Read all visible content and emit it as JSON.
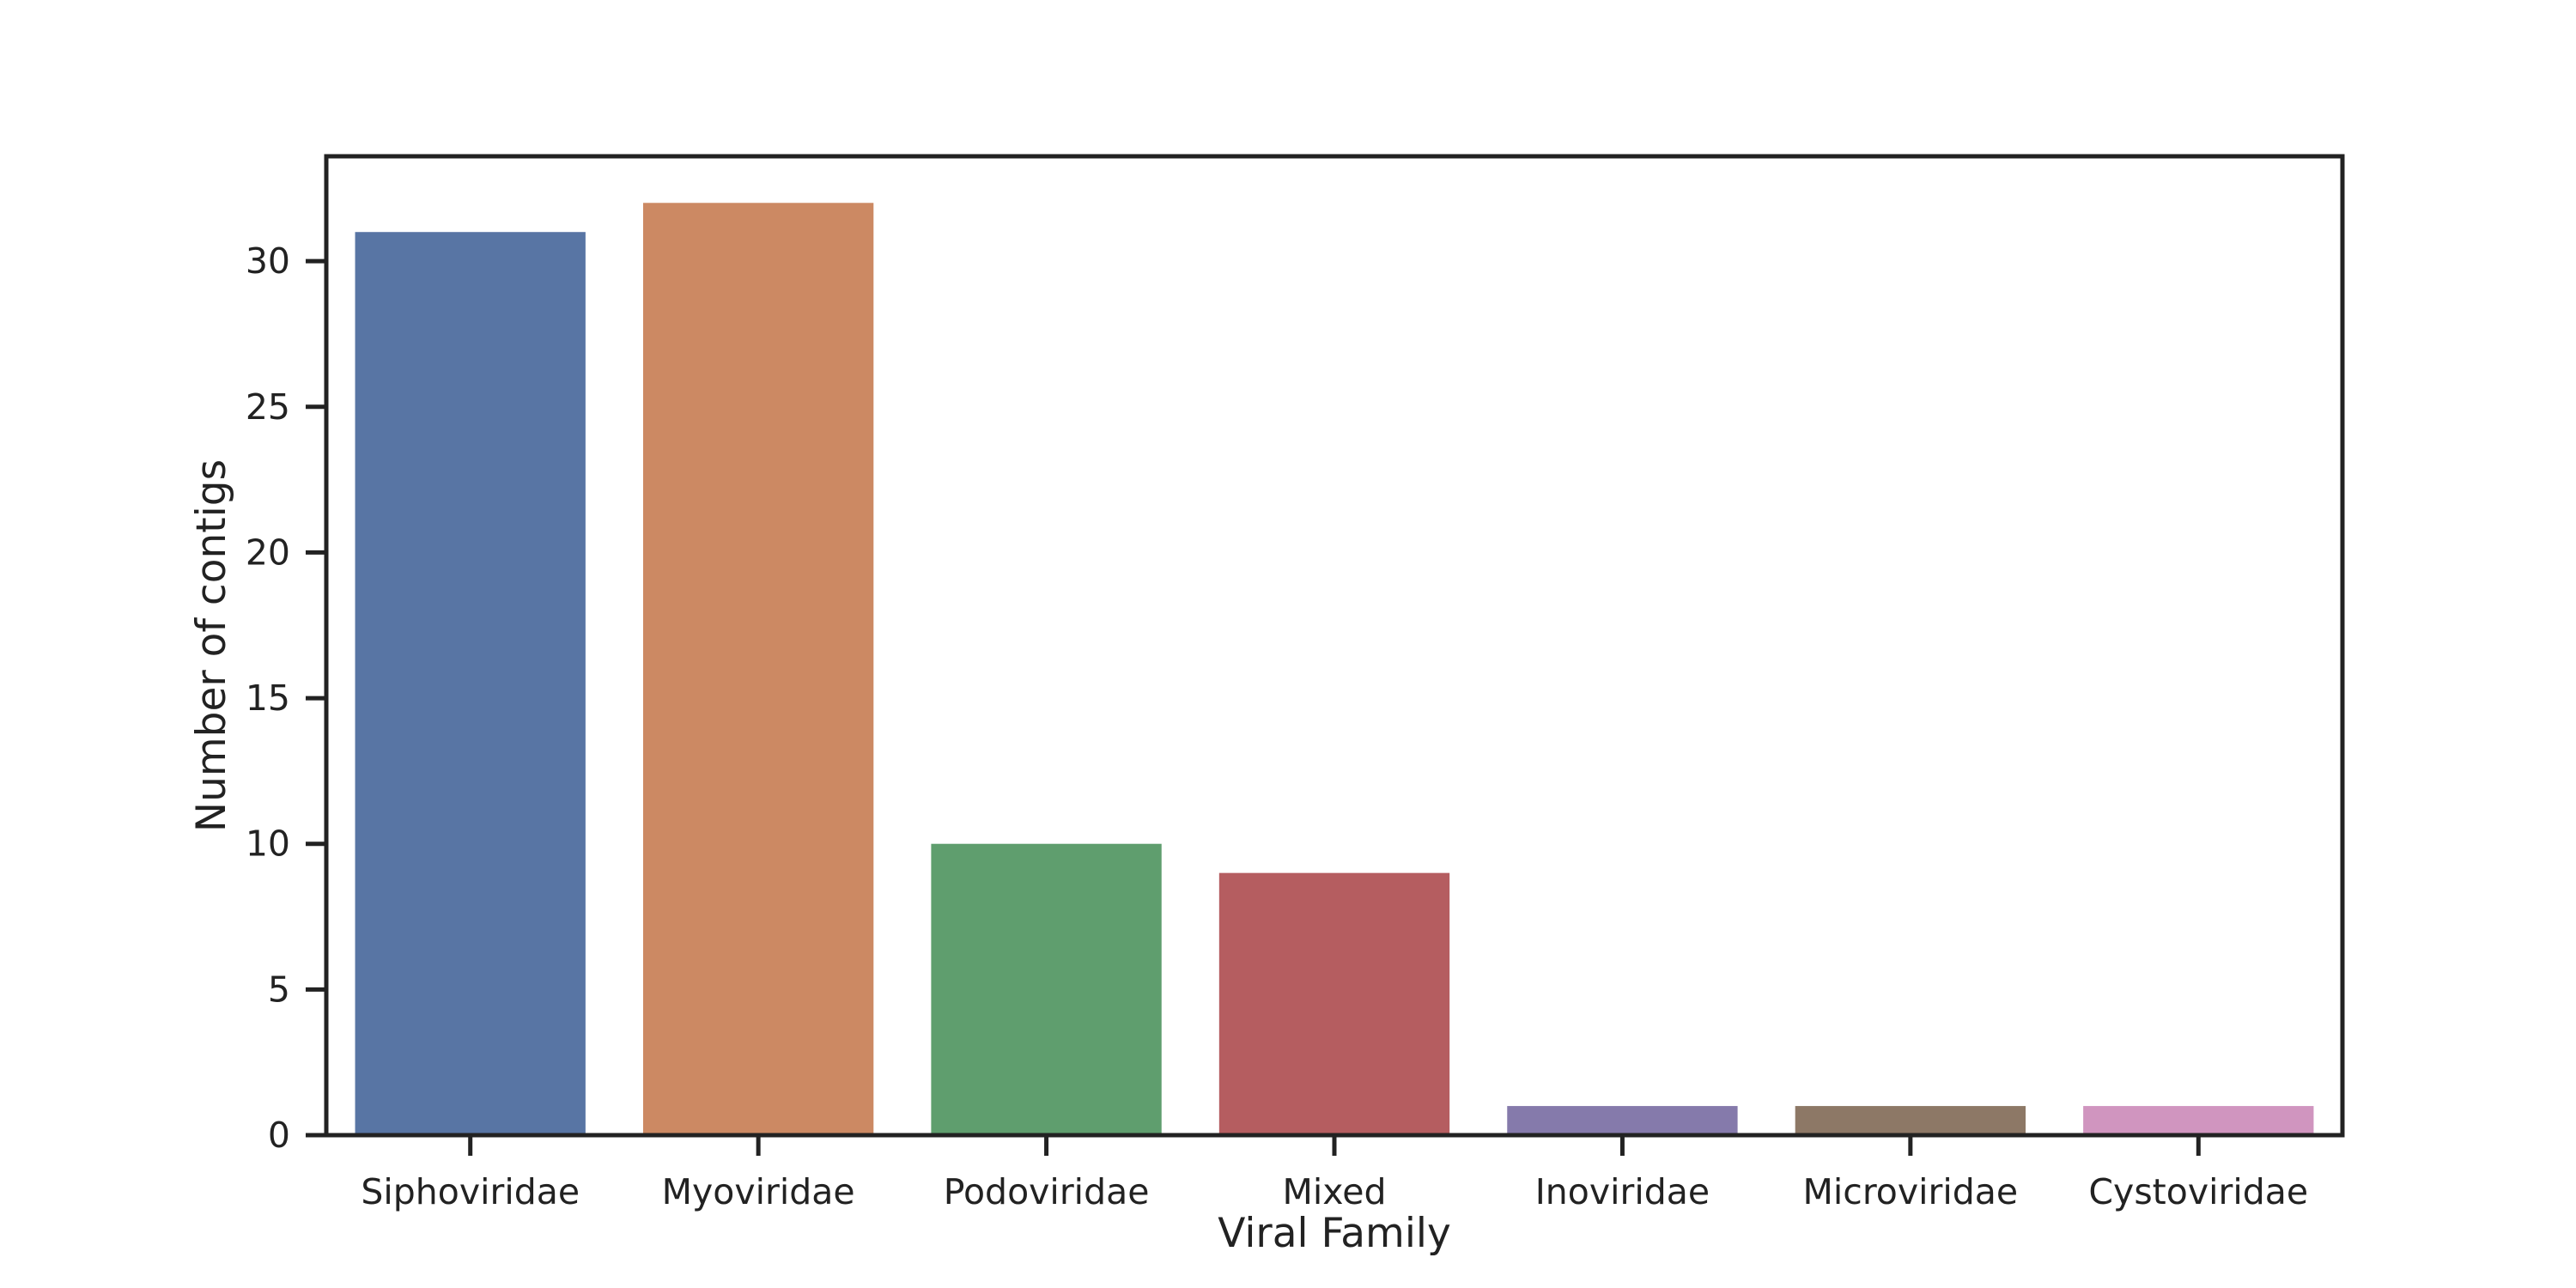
{
  "chart_data": {
    "type": "bar",
    "title": "",
    "xlabel": "Viral Family",
    "ylabel": "Number of contigs",
    "categories": [
      "Siphoviridae",
      "Myoviridae",
      "Podoviridae",
      "Mixed",
      "Inoviridae",
      "Microviridae",
      "Cystoviridae"
    ],
    "values": [
      31,
      32,
      10,
      9,
      1,
      1,
      1
    ],
    "colors": [
      "#5875a4",
      "#cc8963",
      "#5f9e6e",
      "#b55d60",
      "#857aab",
      "#8d7866",
      "#d095bf"
    ],
    "ylim": [
      0,
      33.6
    ],
    "yticks": [
      0,
      5,
      10,
      15,
      20,
      25,
      30
    ],
    "grid": false,
    "legend": "none"
  }
}
